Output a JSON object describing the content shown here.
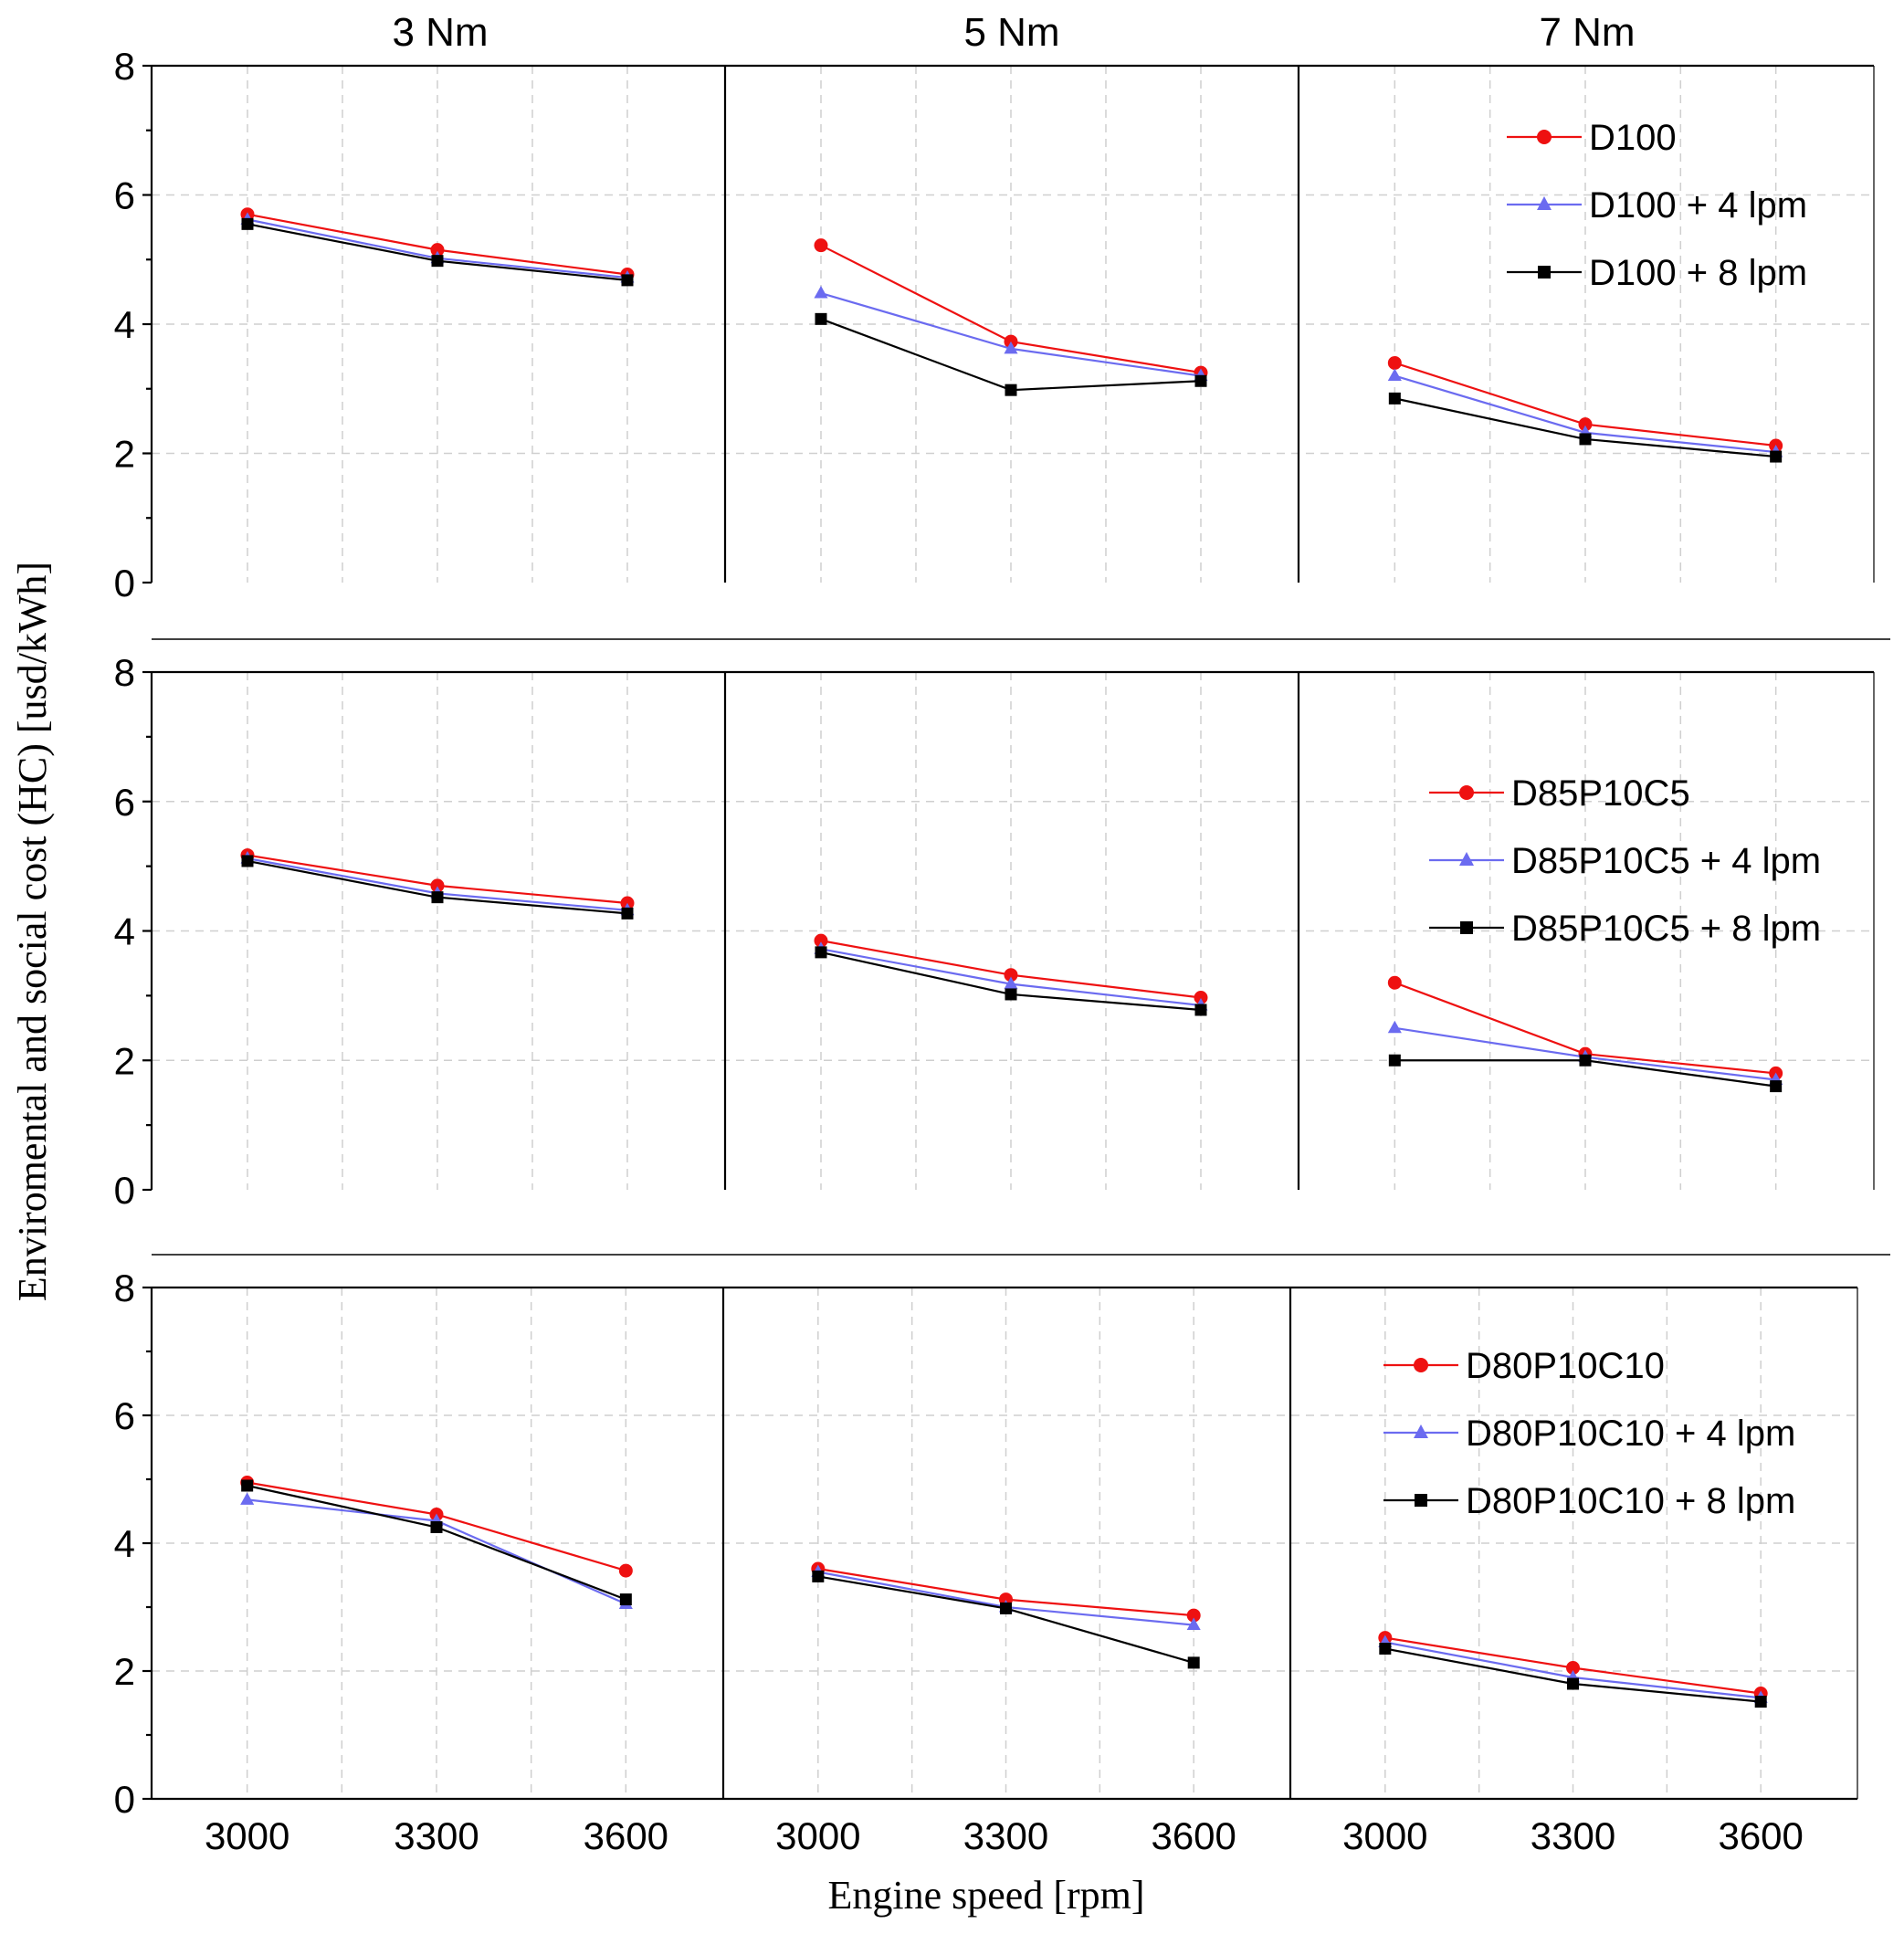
{
  "ylabel": "Enviromental and social cost (HC) [usd/kWh]",
  "xlabel": "Engine speed [rpm]",
  "torque_labels": [
    "3 Nm",
    "5 Nm",
    "7 Nm"
  ],
  "y_ticks": [
    "0",
    "2",
    "4",
    "6",
    "8"
  ],
  "x_ticks": [
    "3000",
    "3300",
    "3600"
  ],
  "colors": {
    "red": "#ee1111",
    "blue": "#6b6bf0",
    "black": "#000000"
  },
  "chart_data": [
    {
      "type": "line",
      "fuel": "D100",
      "x": [
        3000,
        3300,
        3600
      ],
      "ylim": [
        0,
        8
      ],
      "legend_position": "top-right",
      "series": [
        {
          "name": "D100",
          "marker": "circle",
          "values": {
            "3 Nm": [
              5.7,
              5.15,
              4.77
            ],
            "5 Nm": [
              5.22,
              3.73,
              3.25
            ],
            "7 Nm": [
              3.4,
              2.45,
              2.12
            ]
          }
        },
        {
          "name": "D100 + 4 lpm",
          "marker": "triangle",
          "values": {
            "3 Nm": [
              5.62,
              5.02,
              4.72
            ],
            "5 Nm": [
              4.48,
              3.62,
              3.2
            ],
            "7 Nm": [
              3.2,
              2.32,
              2.02
            ]
          }
        },
        {
          "name": "D100 + 8 lpm",
          "marker": "square",
          "values": {
            "3 Nm": [
              5.55,
              4.98,
              4.68
            ],
            "5 Nm": [
              4.08,
              2.98,
              3.12
            ],
            "7 Nm": [
              2.85,
              2.22,
              1.95
            ]
          }
        }
      ]
    },
    {
      "type": "line",
      "fuel": "D85P10C5",
      "x": [
        3000,
        3300,
        3600
      ],
      "ylim": [
        0,
        8
      ],
      "legend_position": "top-right",
      "series": [
        {
          "name": "D85P10C5",
          "marker": "circle",
          "values": {
            "3 Nm": [
              5.17,
              4.7,
              4.43
            ],
            "5 Nm": [
              3.85,
              3.32,
              2.97
            ],
            "7 Nm": [
              3.2,
              2.1,
              1.8
            ]
          }
        },
        {
          "name": "D85P10C5 + 4 lpm",
          "marker": "triangle",
          "values": {
            "3 Nm": [
              5.12,
              4.58,
              4.32
            ],
            "5 Nm": [
              3.72,
              3.18,
              2.85
            ],
            "7 Nm": [
              2.5,
              2.05,
              1.7
            ]
          }
        },
        {
          "name": "D85P10C5 + 8 lpm",
          "marker": "square",
          "values": {
            "3 Nm": [
              5.08,
              4.52,
              4.27
            ],
            "5 Nm": [
              3.67,
              3.02,
              2.78
            ],
            "7 Nm": [
              2.0,
              2.0,
              1.6
            ]
          }
        }
      ]
    },
    {
      "type": "line",
      "fuel": "D80P10C10",
      "x": [
        3000,
        3300,
        3600
      ],
      "ylim": [
        0,
        8
      ],
      "legend_position": "top-right",
      "series": [
        {
          "name": "D80P10C10",
          "marker": "circle",
          "values": {
            "3 Nm": [
              4.95,
              4.45,
              3.57
            ],
            "5 Nm": [
              3.6,
              3.12,
              2.87
            ],
            "7 Nm": [
              2.52,
              2.05,
              1.65
            ]
          }
        },
        {
          "name": "D80P10C10 + 4 lpm",
          "marker": "triangle",
          "values": {
            "3 Nm": [
              4.68,
              4.35,
              3.05
            ],
            "5 Nm": [
              3.55,
              3.0,
              2.72
            ],
            "7 Nm": [
              2.45,
              1.9,
              1.58
            ]
          }
        },
        {
          "name": "D80P10C10 + 8 lpm",
          "marker": "square",
          "values": {
            "3 Nm": [
              4.9,
              4.25,
              3.12
            ],
            "5 Nm": [
              3.48,
              2.98,
              2.13
            ],
            "7 Nm": [
              2.35,
              1.8,
              1.52
            ]
          }
        }
      ]
    }
  ]
}
